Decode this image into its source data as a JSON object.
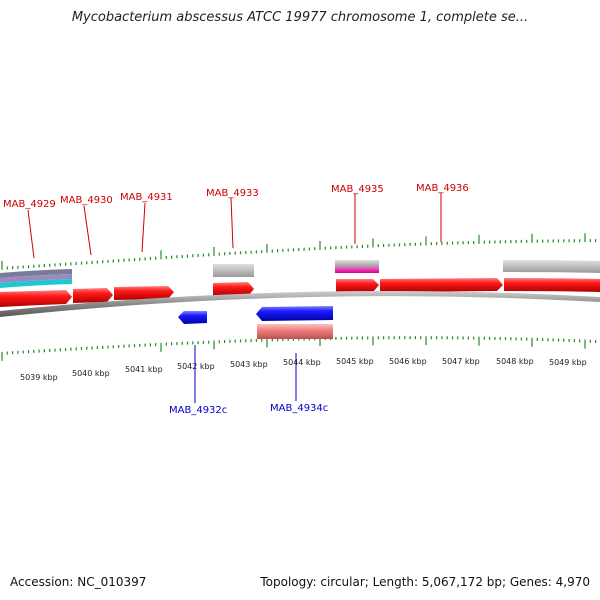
{
  "title": "Mycobacterium abscessus ATCC 19977 chromosome 1, complete se...",
  "footer": {
    "accession": "Accession: NC_010397",
    "summary": "Topology: circular; Length: 5,067,172 bp; Genes: 4,970"
  },
  "colors": {
    "forward_gene": "#ff1a1a",
    "reverse_gene": "#1a1aff",
    "forward_label": "#cc0000",
    "reverse_label": "#0000cc",
    "tick": "#228b22",
    "backbone": "#888888"
  },
  "scale_labels": [
    "5039 kbp",
    "5040 kbp",
    "5041 kbp",
    "5042 kbp",
    "5043 kbp",
    "5044 kbp",
    "5045 kbp",
    "5046 kbp",
    "5047 kbp",
    "5048 kbp",
    "5049 kbp"
  ],
  "gene_labels": {
    "forward": [
      "MAB_4929",
      "MAB_4930",
      "MAB_4931",
      "MAB_4933",
      "MAB_4935",
      "MAB_4936"
    ],
    "reverse": [
      "MAB_4932c",
      "MAB_4934c"
    ]
  }
}
